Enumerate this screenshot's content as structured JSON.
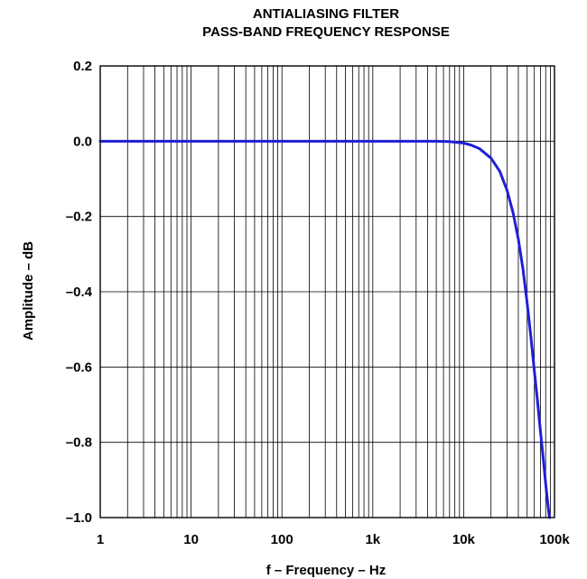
{
  "chart_data": {
    "type": "line",
    "title": "ANTIALIASING FILTER",
    "subtitle": "PASS-BAND FREQUENCY RESPONSE",
    "xlabel": "f – Frequency – Hz",
    "ylabel": "Amplitude – dB",
    "x_scale": "log",
    "xlim": [
      1,
      100000
    ],
    "ylim": [
      -1.0,
      0.2
    ],
    "grid": true,
    "x_tick_values": [
      1,
      10,
      100,
      1000,
      10000,
      100000
    ],
    "x_tick_labels": [
      "1",
      "10",
      "100",
      "1k",
      "10k",
      "100k"
    ],
    "y_tick_values": [
      0.2,
      0.0,
      -0.2,
      -0.4,
      -0.6,
      -0.8,
      -1.0
    ],
    "y_tick_labels": [
      "0.2",
      "0.0",
      "–0.2",
      "–0.4",
      "–0.6",
      "–0.8",
      "–1.0"
    ],
    "series": [
      {
        "color": "#1f1fd8",
        "x": [
          1,
          10,
          100,
          1000,
          3000,
          5000,
          7000,
          10000,
          12000,
          15000,
          20000,
          25000,
          30000,
          35000,
          40000,
          45000,
          50000,
          55000,
          60000,
          65000,
          70000,
          75000,
          80000,
          85000,
          88000
        ],
        "y": [
          0.0,
          0.0,
          0.0,
          0.0,
          0.0,
          0.0,
          -0.001,
          -0.005,
          -0.01,
          -0.02,
          -0.045,
          -0.08,
          -0.13,
          -0.19,
          -0.26,
          -0.34,
          -0.43,
          -0.52,
          -0.61,
          -0.69,
          -0.77,
          -0.84,
          -0.91,
          -0.97,
          -1.0
        ]
      }
    ]
  }
}
